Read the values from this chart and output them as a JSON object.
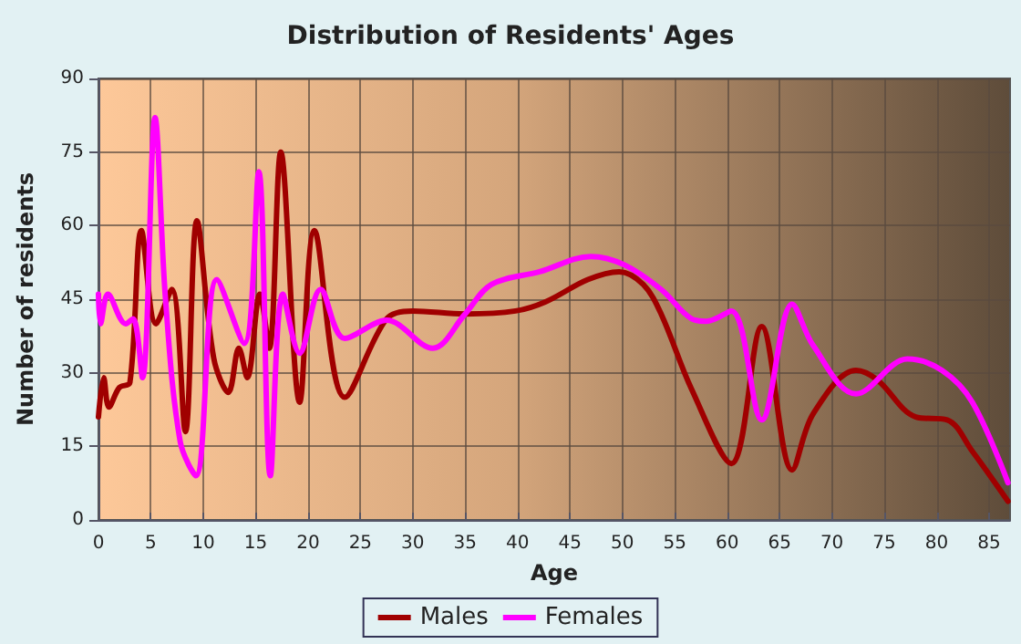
{
  "chart_data": {
    "type": "line",
    "title": "Distribution of Residents' Ages",
    "xlabel": "Age",
    "ylabel": "Number of residents",
    "xlim": [
      0,
      87
    ],
    "xticks": [
      0,
      5,
      10,
      15,
      20,
      25,
      30,
      35,
      40,
      45,
      50,
      55,
      60,
      65,
      70,
      75,
      80,
      85
    ],
    "ylim": [
      0,
      90
    ],
    "yticks": [
      0,
      15,
      30,
      45,
      60,
      75,
      90
    ],
    "grid": true,
    "legend": "bottom",
    "marker": "none",
    "line_style": "solid",
    "series": [
      {
        "name": "Males",
        "color": "#a00000",
        "x": [
          0,
          0.5,
          1,
          2,
          3,
          4.1,
          5.5,
          7,
          8.3,
          9.4,
          11,
          12.4,
          13.4,
          14.2,
          15.4,
          16.3,
          17.4,
          19.2,
          20.6,
          23.5,
          27.5,
          30,
          35,
          39.8,
          42.7,
          46.7,
          49.7,
          52,
          53.7,
          56.6,
          60.4,
          63.3,
          66.2,
          68.2,
          72.3,
          74.3,
          78,
          81,
          83.4,
          86.8
        ],
        "values": [
          21,
          29,
          23,
          27,
          28,
          59,
          40,
          47,
          18,
          61,
          33,
          26,
          35,
          29,
          46,
          35,
          75,
          24,
          59,
          25,
          41,
          42.6,
          42,
          42.6,
          44.5,
          49,
          50.6,
          48,
          42,
          26.7,
          11.5,
          39.4,
          10.2,
          21.6,
          30.5,
          28.6,
          21,
          20.4,
          14,
          3.8
        ]
      },
      {
        "name": "Females",
        "color": "#ff00ff",
        "x": [
          0,
          0.2,
          0.9,
          2.6,
          3.3,
          4.2,
          5.4,
          6.4,
          7.8,
          9.3,
          11.3,
          13.9,
          15.3,
          16.4,
          17.6,
          19.2,
          21.2,
          23.5,
          27.5,
          31.9,
          35,
          37.5,
          42.1,
          47,
          50.2,
          53.7,
          56.6,
          58,
          60.4,
          63.3,
          66.2,
          68.2,
          72.3,
          77.2,
          80.5,
          83.4,
          86.8
        ],
        "values": [
          46,
          40,
          46,
          40,
          41,
          29,
          82,
          45,
          16,
          9,
          49,
          36,
          71,
          9,
          46,
          34,
          47,
          37,
          40.7,
          35,
          42,
          48,
          50.6,
          53.7,
          52,
          47,
          41,
          40.5,
          42.6,
          20.4,
          44,
          35.6,
          25.7,
          32.8,
          30.5,
          24,
          7.6
        ]
      }
    ]
  }
}
